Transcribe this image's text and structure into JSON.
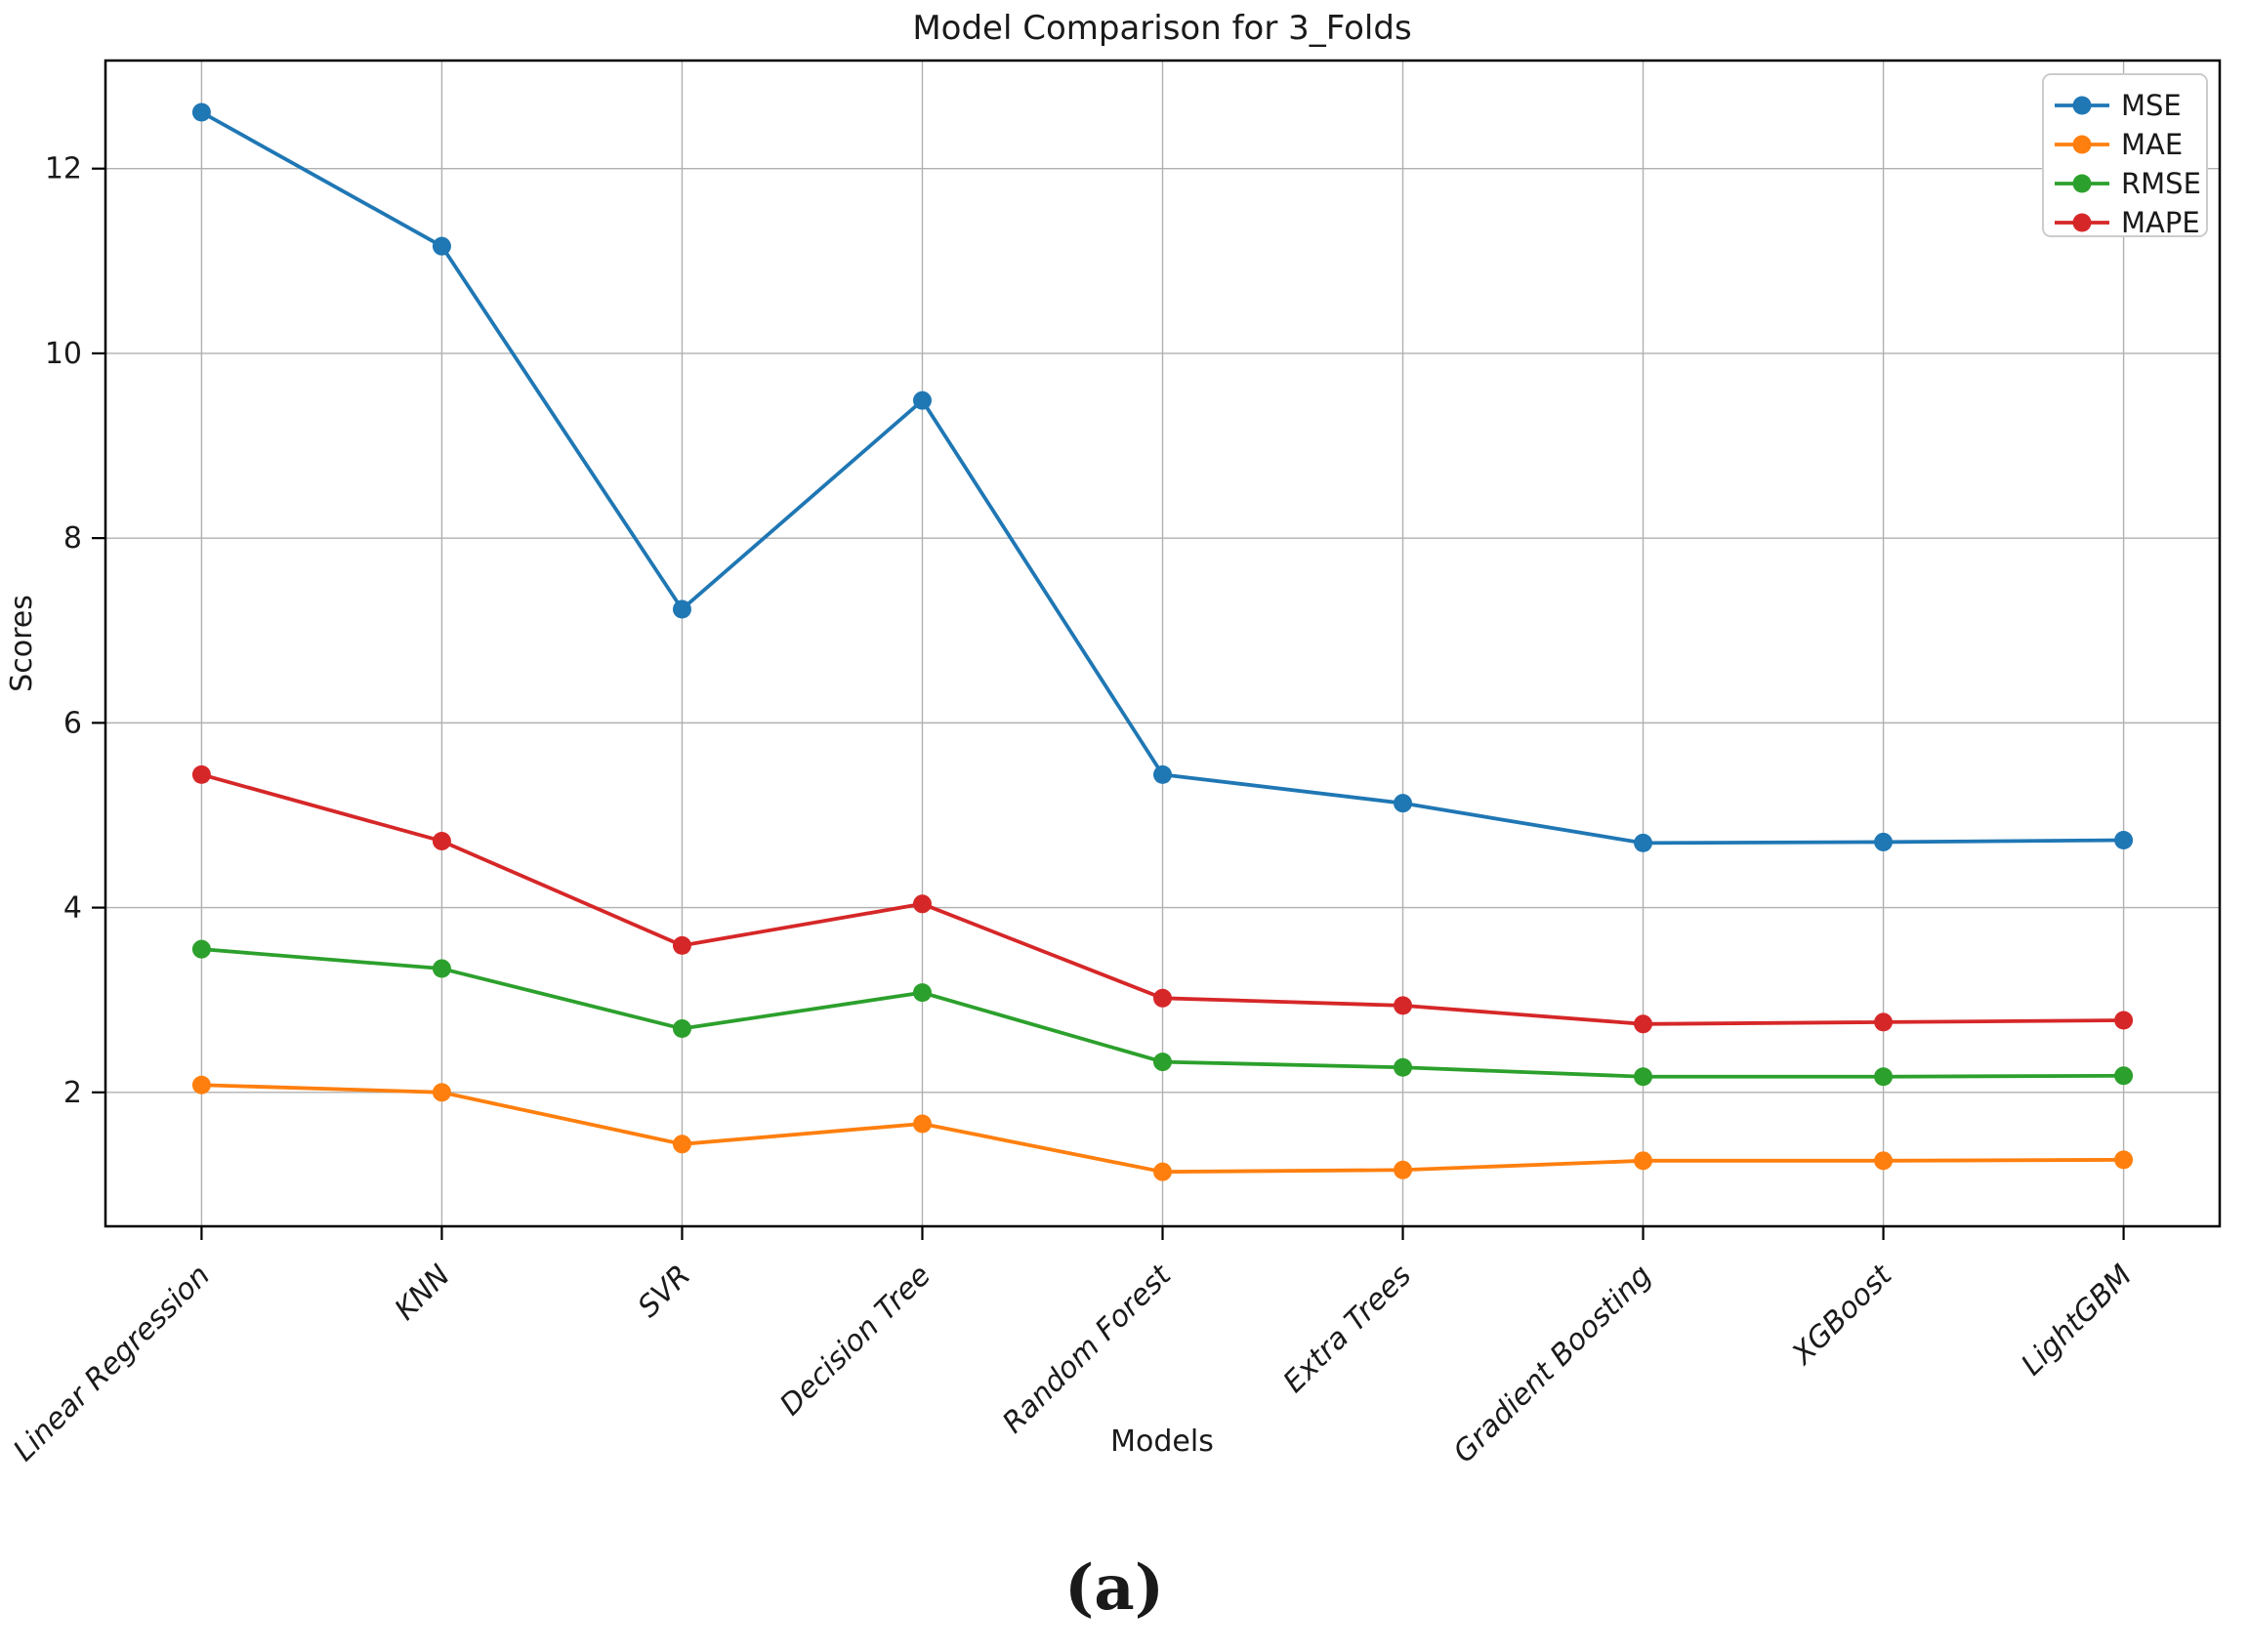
{
  "figure": {
    "caption": "(a)"
  },
  "chart_data": {
    "type": "line",
    "title": "Model Comparison for 3_Folds",
    "xlabel": "Models",
    "ylabel": "Scores",
    "categories": [
      "Linear Regression",
      "KNN",
      "SVR",
      "Decision Tree",
      "Random Forest",
      "Extra Trees",
      "Gradient Boosting",
      "XGBoost",
      "LightGBM"
    ],
    "series": [
      {
        "name": "MSE",
        "color": "#1f77b4",
        "values": [
          12.61,
          11.16,
          7.23,
          9.49,
          5.44,
          5.13,
          4.7,
          4.71,
          4.73
        ]
      },
      {
        "name": "MAE",
        "color": "#ff7f0e",
        "values": [
          2.08,
          2.0,
          1.44,
          1.66,
          1.14,
          1.16,
          1.26,
          1.26,
          1.27
        ]
      },
      {
        "name": "RMSE",
        "color": "#2ca02c",
        "values": [
          3.55,
          3.34,
          2.69,
          3.08,
          2.33,
          2.27,
          2.17,
          2.17,
          2.18
        ]
      },
      {
        "name": "MAPE",
        "color": "#d62728",
        "values": [
          5.44,
          4.72,
          3.59,
          4.04,
          3.02,
          2.94,
          2.74,
          2.76,
          2.78
        ]
      }
    ],
    "yticks": [
      2,
      4,
      6,
      8,
      10,
      12
    ],
    "ylim": [
      0.55,
      13.17
    ],
    "grid": true,
    "grid_color": "#b0b0b0",
    "axis_color": "#000000",
    "legend_position": "upper right"
  }
}
